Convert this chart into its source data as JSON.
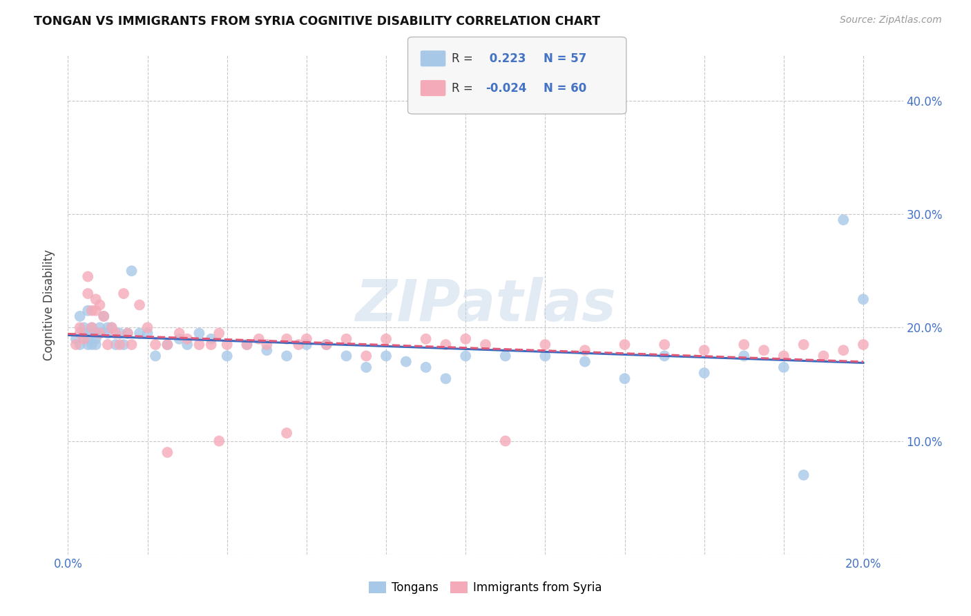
{
  "title": "TONGAN VS IMMIGRANTS FROM SYRIA COGNITIVE DISABILITY CORRELATION CHART",
  "source": "Source: ZipAtlas.com",
  "ylabel": "Cognitive Disability",
  "y_ticks": [
    0.0,
    0.1,
    0.2,
    0.3,
    0.4
  ],
  "y_tick_labels": [
    "",
    "10.0%",
    "20.0%",
    "30.0%",
    "40.0%"
  ],
  "x_range": [
    0.0,
    0.21
  ],
  "y_range": [
    0.0,
    0.44
  ],
  "r_tongan": 0.223,
  "n_tongan": 57,
  "r_syria": -0.024,
  "n_syria": 60,
  "tongan_color": "#a8c8e8",
  "syria_color": "#f4aab8",
  "tongan_line_color": "#3a6abf",
  "syria_line_color": "#e05878",
  "watermark": "ZIPatlas",
  "tongan_x": [
    0.002,
    0.003,
    0.003,
    0.004,
    0.004,
    0.005,
    0.005,
    0.005,
    0.006,
    0.006,
    0.006,
    0.007,
    0.007,
    0.007,
    0.008,
    0.008,
    0.009,
    0.01,
    0.01,
    0.011,
    0.012,
    0.013,
    0.014,
    0.015,
    0.016,
    0.018,
    0.02,
    0.022,
    0.025,
    0.028,
    0.03,
    0.033,
    0.036,
    0.04,
    0.045,
    0.05,
    0.055,
    0.06,
    0.065,
    0.07,
    0.075,
    0.08,
    0.085,
    0.09,
    0.095,
    0.1,
    0.11,
    0.12,
    0.13,
    0.14,
    0.15,
    0.16,
    0.17,
    0.18,
    0.185,
    0.195,
    0.2
  ],
  "tongan_y": [
    0.19,
    0.21,
    0.185,
    0.195,
    0.2,
    0.185,
    0.19,
    0.215,
    0.185,
    0.195,
    0.2,
    0.19,
    0.195,
    0.185,
    0.2,
    0.195,
    0.21,
    0.2,
    0.195,
    0.2,
    0.185,
    0.195,
    0.185,
    0.195,
    0.25,
    0.195,
    0.195,
    0.175,
    0.185,
    0.19,
    0.185,
    0.195,
    0.19,
    0.175,
    0.185,
    0.18,
    0.175,
    0.185,
    0.185,
    0.175,
    0.165,
    0.175,
    0.17,
    0.165,
    0.155,
    0.175,
    0.175,
    0.175,
    0.17,
    0.155,
    0.175,
    0.16,
    0.175,
    0.165,
    0.07,
    0.295,
    0.225
  ],
  "syria_x": [
    0.002,
    0.003,
    0.003,
    0.004,
    0.005,
    0.005,
    0.006,
    0.006,
    0.007,
    0.007,
    0.008,
    0.008,
    0.009,
    0.01,
    0.011,
    0.012,
    0.013,
    0.014,
    0.015,
    0.016,
    0.018,
    0.02,
    0.022,
    0.025,
    0.028,
    0.03,
    0.033,
    0.036,
    0.038,
    0.04,
    0.045,
    0.048,
    0.05,
    0.055,
    0.058,
    0.06,
    0.065,
    0.07,
    0.075,
    0.08,
    0.09,
    0.095,
    0.1,
    0.105,
    0.11,
    0.12,
    0.13,
    0.14,
    0.15,
    0.16,
    0.17,
    0.175,
    0.18,
    0.185,
    0.19,
    0.195,
    0.2,
    0.055,
    0.038,
    0.025
  ],
  "syria_y": [
    0.185,
    0.2,
    0.195,
    0.19,
    0.245,
    0.23,
    0.215,
    0.2,
    0.225,
    0.215,
    0.22,
    0.195,
    0.21,
    0.185,
    0.2,
    0.195,
    0.185,
    0.23,
    0.195,
    0.185,
    0.22,
    0.2,
    0.185,
    0.185,
    0.195,
    0.19,
    0.185,
    0.185,
    0.195,
    0.185,
    0.185,
    0.19,
    0.185,
    0.19,
    0.185,
    0.19,
    0.185,
    0.19,
    0.175,
    0.19,
    0.19,
    0.185,
    0.19,
    0.185,
    0.1,
    0.185,
    0.18,
    0.185,
    0.185,
    0.18,
    0.185,
    0.18,
    0.175,
    0.185,
    0.175,
    0.18,
    0.185,
    0.107,
    0.1,
    0.09
  ]
}
